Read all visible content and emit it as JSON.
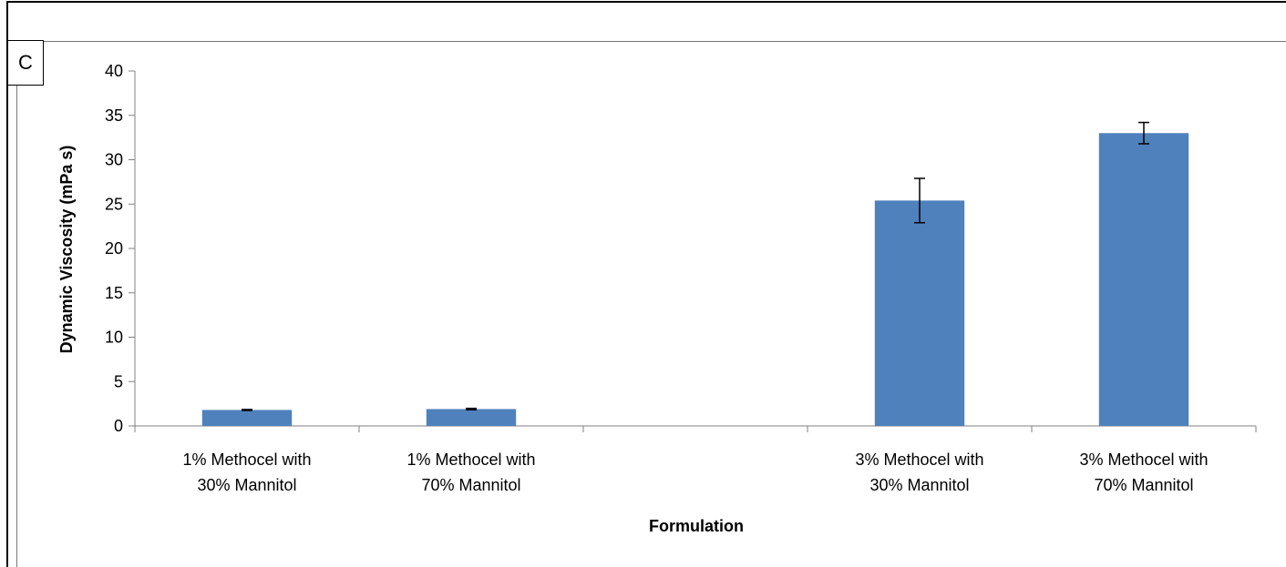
{
  "panel": {
    "label": "C"
  },
  "chart_data": {
    "type": "bar",
    "title": "",
    "xlabel": "Formulation",
    "ylabel": "Dynamic Viscosity (mPa s)",
    "ylim": [
      0,
      40
    ],
    "yticks": [
      0,
      5,
      10,
      15,
      20,
      25,
      30,
      35,
      40
    ],
    "categories": [
      [
        "1% Methocel with",
        "30% Mannitol"
      ],
      [
        "1% Methocel with",
        "70% Mannitol"
      ],
      [
        "",
        ""
      ],
      [
        "3% Methocel with",
        "30% Mannitol"
      ],
      [
        "3% Methocel with",
        "70% Mannitol"
      ]
    ],
    "series": [
      {
        "values": [
          1.8,
          1.9,
          null,
          25.4,
          33.0
        ],
        "error": [
          0.05,
          0.08,
          null,
          2.5,
          1.2
        ],
        "color": "#4f81bd"
      }
    ],
    "grid": false,
    "legend": "none"
  }
}
